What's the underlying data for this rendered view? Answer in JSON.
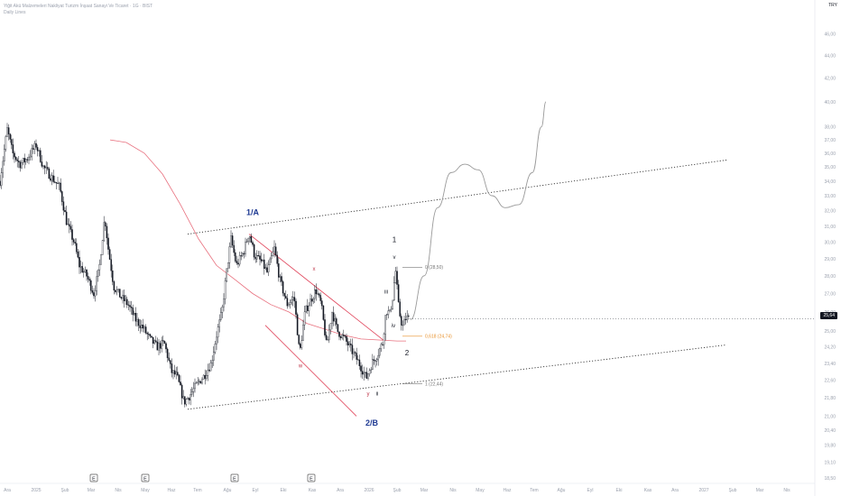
{
  "header": {
    "title": "Yiğit Akü Malzemeleri Nakliyat Turizm İnşaat Sanayi Ve Ticaret · 1G · BIST",
    "subtitle": "Daily Lines",
    "currency": "TRY"
  },
  "last_price": "25,64",
  "colors": {
    "candle": "#131722",
    "ma": "#e8707e",
    "wedge": "#e0445a",
    "wave_blue": "#1f3a93",
    "fib_orange": "#e8902a",
    "projection": "#9a9a9a",
    "grid_text": "#9aa0ad",
    "wxy": "#c0394b"
  },
  "chart_data": {
    "type": "candlestick",
    "ylim": [
      18.5,
      47.5
    ],
    "y_ticks": [
      "46,00",
      "44,00",
      "42,00",
      "40,00",
      "38,00",
      "37,00",
      "36,00",
      "35,00",
      "34,00",
      "33,00",
      "32,00",
      "31,00",
      "30,00",
      "29,00",
      "28,00",
      "27,00",
      "26,00",
      "25,00",
      "24,20",
      "23,40",
      "22,60",
      "21,80",
      "21,00",
      "20,40",
      "19,80",
      "19,10",
      "18,50"
    ],
    "x_ticks": [
      "Ara",
      "2025",
      "Şub",
      "Mar",
      "Nis",
      "May",
      "Haz",
      "Tem",
      "Ağu",
      "Eyl",
      "Eki",
      "Kas",
      "Ara",
      "2026",
      "Şub",
      "Mar",
      "Nis",
      "May",
      "Haz",
      "Tem",
      "Ağu",
      "Eyl",
      "Eki",
      "Kas",
      "Ara",
      "2027",
      "Şub",
      "Mar",
      "Nis"
    ],
    "earnings_markers": [
      "E",
      "E",
      "E",
      "E"
    ],
    "price_path": [
      [
        0,
        34.0
      ],
      [
        8,
        37.8
      ],
      [
        14,
        36.0
      ],
      [
        22,
        35.2
      ],
      [
        30,
        35.6
      ],
      [
        40,
        36.6
      ],
      [
        48,
        35.0
      ],
      [
        58,
        34.2
      ],
      [
        66,
        33.6
      ],
      [
        74,
        31.2
      ],
      [
        82,
        30.0
      ],
      [
        88,
        28.6
      ],
      [
        96,
        28.0
      ],
      [
        104,
        27.0
      ],
      [
        110,
        28.4
      ],
      [
        116,
        31.6
      ],
      [
        120,
        29.6
      ],
      [
        126,
        27.4
      ],
      [
        134,
        26.8
      ],
      [
        142,
        26.4
      ],
      [
        150,
        25.6
      ],
      [
        158,
        25.2
      ],
      [
        166,
        24.6
      ],
      [
        174,
        24.2
      ],
      [
        182,
        24.4
      ],
      [
        190,
        23.0
      ],
      [
        196,
        22.8
      ],
      [
        204,
        21.6
      ],
      [
        210,
        21.9
      ],
      [
        218,
        22.4
      ],
      [
        226,
        22.8
      ],
      [
        234,
        23.4
      ],
      [
        240,
        24.8
      ],
      [
        246,
        26.0
      ],
      [
        252,
        28.6
      ],
      [
        256,
        30.2
      ],
      [
        262,
        28.6
      ],
      [
        270,
        29.4
      ],
      [
        276,
        30.6
      ],
      [
        282,
        29.2
      ],
      [
        290,
        28.8
      ],
      [
        296,
        28.2
      ],
      [
        304,
        29.6
      ],
      [
        310,
        27.8
      ],
      [
        318,
        26.4
      ],
      [
        326,
        26.8
      ],
      [
        332,
        23.8
      ],
      [
        338,
        26.0
      ],
      [
        346,
        26.8
      ],
      [
        350,
        27.2
      ],
      [
        356,
        26.4
      ],
      [
        362,
        24.2
      ],
      [
        368,
        26.0
      ],
      [
        374,
        25.0
      ],
      [
        382,
        24.6
      ],
      [
        390,
        24.0
      ],
      [
        398,
        23.4
      ],
      [
        406,
        22.7
      ],
      [
        412,
        23.4
      ],
      [
        418,
        23.8
      ],
      [
        424,
        24.4
      ],
      [
        428,
        26.1
      ],
      [
        432,
        25.9
      ],
      [
        436,
        27.0
      ],
      [
        438,
        28.5
      ],
      [
        442,
        26.1
      ],
      [
        446,
        25.2
      ],
      [
        450,
        25.7
      ],
      [
        454,
        25.64
      ]
    ],
    "moving_average": [
      [
        122,
        37.0
      ],
      [
        140,
        36.8
      ],
      [
        160,
        36.0
      ],
      [
        180,
        34.5
      ],
      [
        200,
        32.4
      ],
      [
        220,
        30.2
      ],
      [
        240,
        28.6
      ],
      [
        260,
        27.8
      ],
      [
        280,
        27.0
      ],
      [
        300,
        26.4
      ],
      [
        320,
        26.0
      ],
      [
        340,
        25.4
      ],
      [
        360,
        25.1
      ],
      [
        380,
        24.8
      ],
      [
        400,
        24.6
      ],
      [
        420,
        24.55
      ],
      [
        440,
        24.5
      ],
      [
        450,
        24.5
      ]
    ],
    "trend_channel": {
      "upper": [
        [
          208,
          30.5
        ],
        [
          805,
          35.5
        ]
      ],
      "lower": [
        [
          208,
          21.3
        ],
        [
          805,
          24.3
        ]
      ]
    },
    "wedge_lines": [
      {
        "from": [
          276,
          30.5
        ],
        "to": [
          426,
          24.5
        ]
      },
      {
        "from": [
          294,
          25.3
        ],
        "to": [
          395,
          21.0
        ]
      }
    ],
    "wave_labels": [
      {
        "text": "1/A",
        "x": 280,
        "y": 31.7,
        "color": "blue"
      },
      {
        "text": "2/B",
        "x": 412,
        "y": 20.6,
        "color": "blue"
      },
      {
        "text": "1",
        "x": 437,
        "y": 30.0,
        "color": "black"
      },
      {
        "text": "2",
        "x": 451,
        "y": 23.8,
        "color": "black"
      },
      {
        "text": "v",
        "x": 437,
        "y": 29.0,
        "color": "black"
      },
      {
        "text": "iii",
        "x": 428,
        "y": 27.0,
        "color": "black"
      },
      {
        "text": "iv",
        "x": 436,
        "y": 25.2,
        "color": "black"
      },
      {
        "text": "i",
        "x": 416,
        "y": 23.2,
        "color": "black"
      },
      {
        "text": "ii",
        "x": 418,
        "y": 21.9,
        "color": "black"
      },
      {
        "text": "x",
        "x": 348,
        "y": 28.3,
        "color": "wxy"
      },
      {
        "text": "w",
        "x": 333,
        "y": 23.2,
        "color": "wxy"
      },
      {
        "text": "y",
        "x": 408,
        "y": 21.9,
        "color": "wxy"
      }
    ],
    "fib_levels": [
      {
        "label": "0 (28,50)",
        "value": 28.5,
        "color": "gray"
      },
      {
        "label": "0,618 (24,74)",
        "value": 24.74,
        "color": "orange"
      },
      {
        "label": "1 (22,44)",
        "value": 22.44,
        "color": "gray"
      }
    ],
    "projection_path": [
      [
        455,
        25.6
      ],
      [
        470,
        28.0
      ],
      [
        485,
        32.2
      ],
      [
        500,
        34.6
      ],
      [
        515,
        35.2
      ],
      [
        530,
        34.8
      ],
      [
        545,
        33.0
      ],
      [
        560,
        32.2
      ],
      [
        575,
        32.4
      ],
      [
        590,
        34.6
      ],
      [
        600,
        38.0
      ],
      [
        605,
        40.0
      ]
    ]
  }
}
